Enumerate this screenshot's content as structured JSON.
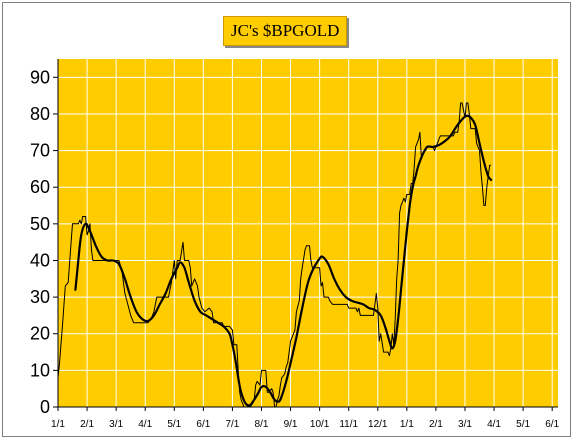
{
  "chart_data": {
    "type": "line",
    "title": "JC's $BPGOLD",
    "xlabel": "",
    "ylabel": "",
    "x_ticks": [
      "1/1",
      "2/1",
      "3/1",
      "4/1",
      "5/1",
      "6/1",
      "7/1",
      "8/1",
      "9/1",
      "10/1",
      "11/1",
      "12/1",
      "1/1",
      "2/1",
      "3/1",
      "4/1",
      "5/1",
      "6/1"
    ],
    "y_ticks": [
      0,
      10,
      20,
      30,
      40,
      50,
      60,
      70,
      80,
      90
    ],
    "ylim": [
      0,
      95
    ],
    "xlim": [
      0,
      17.2
    ],
    "grid": true,
    "legend": "none",
    "colors": {
      "background": "#ffcc00",
      "grid": "#ffffff",
      "series": "#000000"
    },
    "series": [
      {
        "style": "step",
        "points": [
          [
            0,
            8
          ],
          [
            0.05,
            12
          ],
          [
            0.15,
            22
          ],
          [
            0.25,
            33
          ],
          [
            0.35,
            34
          ],
          [
            0.45,
            45
          ],
          [
            0.5,
            50
          ],
          [
            0.7,
            50
          ],
          [
            0.75,
            51
          ],
          [
            0.8,
            50
          ],
          [
            0.85,
            52
          ],
          [
            0.95,
            52
          ],
          [
            1.0,
            47
          ],
          [
            1.05,
            48
          ],
          [
            1.1,
            50
          ],
          [
            1.15,
            43
          ],
          [
            1.2,
            40
          ],
          [
            1.55,
            40
          ],
          [
            1.65,
            40
          ],
          [
            2.1,
            40
          ],
          [
            2.2,
            37
          ],
          [
            2.3,
            31
          ],
          [
            2.4,
            28
          ],
          [
            2.5,
            25
          ],
          [
            2.6,
            23
          ],
          [
            3.1,
            23
          ],
          [
            3.2,
            24
          ],
          [
            3.3,
            26
          ],
          [
            3.4,
            30
          ],
          [
            3.8,
            30
          ],
          [
            3.9,
            34
          ],
          [
            4.0,
            40
          ],
          [
            4.05,
            35
          ],
          [
            4.1,
            40
          ],
          [
            4.2,
            40
          ],
          [
            4.3,
            45
          ],
          [
            4.35,
            40
          ],
          [
            4.5,
            40
          ],
          [
            4.55,
            38
          ],
          [
            4.6,
            33
          ],
          [
            4.7,
            35
          ],
          [
            4.8,
            33
          ],
          [
            4.85,
            30
          ],
          [
            4.95,
            27
          ],
          [
            5.05,
            26
          ],
          [
            5.2,
            27
          ],
          [
            5.3,
            26
          ],
          [
            5.35,
            23
          ],
          [
            5.65,
            23
          ],
          [
            5.7,
            22
          ],
          [
            5.9,
            22
          ],
          [
            6.0,
            21
          ],
          [
            6.05,
            17
          ],
          [
            6.15,
            17
          ],
          [
            6.2,
            10
          ],
          [
            6.25,
            4
          ],
          [
            6.3,
            2
          ],
          [
            6.4,
            0
          ],
          [
            6.5,
            0
          ],
          [
            6.6,
            0
          ],
          [
            6.7,
            1
          ],
          [
            6.75,
            2
          ],
          [
            6.8,
            6
          ],
          [
            6.85,
            7
          ],
          [
            6.95,
            6
          ],
          [
            7.0,
            10
          ],
          [
            7.05,
            10
          ],
          [
            7.15,
            10
          ],
          [
            7.2,
            4
          ],
          [
            7.25,
            4
          ],
          [
            7.35,
            5
          ],
          [
            7.4,
            4
          ],
          [
            7.45,
            0
          ],
          [
            7.5,
            0
          ],
          [
            7.55,
            2
          ],
          [
            7.6,
            3
          ],
          [
            7.65,
            6
          ],
          [
            7.7,
            8
          ],
          [
            7.8,
            9
          ],
          [
            7.85,
            11
          ],
          [
            7.9,
            12
          ],
          [
            8.0,
            18
          ],
          [
            8.1,
            20
          ],
          [
            8.15,
            21
          ],
          [
            8.2,
            26
          ],
          [
            8.3,
            29
          ],
          [
            8.35,
            35
          ],
          [
            8.4,
            38
          ],
          [
            8.5,
            43
          ],
          [
            8.55,
            44
          ],
          [
            8.65,
            44
          ],
          [
            8.7,
            40
          ],
          [
            8.75,
            38
          ],
          [
            9.0,
            38
          ],
          [
            9.05,
            33
          ],
          [
            9.1,
            34
          ],
          [
            9.15,
            30
          ],
          [
            9.3,
            30
          ],
          [
            9.35,
            29
          ],
          [
            9.45,
            28
          ],
          [
            9.95,
            28
          ],
          [
            10.0,
            27
          ],
          [
            10.25,
            27
          ],
          [
            10.3,
            26
          ],
          [
            10.35,
            27
          ],
          [
            10.4,
            25
          ],
          [
            10.85,
            25
          ],
          [
            10.9,
            28
          ],
          [
            10.95,
            31
          ],
          [
            11.0,
            27
          ],
          [
            11.05,
            18
          ],
          [
            11.1,
            20
          ],
          [
            11.2,
            15
          ],
          [
            11.35,
            15
          ],
          [
            11.4,
            14
          ],
          [
            11.45,
            16
          ],
          [
            11.5,
            20
          ],
          [
            11.55,
            17
          ],
          [
            11.6,
            24
          ],
          [
            11.65,
            35
          ],
          [
            11.7,
            40
          ],
          [
            11.75,
            53
          ],
          [
            11.8,
            55
          ],
          [
            11.85,
            56
          ],
          [
            11.9,
            57
          ],
          [
            11.95,
            56
          ],
          [
            12.0,
            58
          ],
          [
            12.1,
            58
          ],
          [
            12.15,
            61
          ],
          [
            12.2,
            61
          ],
          [
            12.25,
            65
          ],
          [
            12.3,
            71
          ],
          [
            12.4,
            73
          ],
          [
            12.45,
            75
          ],
          [
            12.5,
            68
          ],
          [
            12.6,
            70
          ],
          [
            12.65,
            70
          ],
          [
            12.7,
            71
          ],
          [
            12.9,
            71
          ],
          [
            12.95,
            70
          ],
          [
            13.0,
            71
          ],
          [
            13.05,
            72
          ],
          [
            13.1,
            73
          ],
          [
            13.15,
            74
          ],
          [
            13.6,
            74
          ],
          [
            13.65,
            75
          ],
          [
            13.75,
            75
          ],
          [
            13.8,
            78
          ],
          [
            13.85,
            83
          ],
          [
            13.9,
            83
          ],
          [
            14.0,
            79
          ],
          [
            14.05,
            83
          ],
          [
            14.1,
            83
          ],
          [
            14.15,
            80
          ],
          [
            14.2,
            76
          ],
          [
            14.35,
            76
          ],
          [
            14.4,
            72
          ],
          [
            14.5,
            70
          ],
          [
            14.55,
            64
          ],
          [
            14.6,
            60
          ],
          [
            14.65,
            55
          ],
          [
            14.7,
            55
          ],
          [
            14.75,
            60
          ],
          [
            14.8,
            63
          ],
          [
            14.85,
            66
          ],
          [
            14.9,
            66
          ]
        ]
      },
      {
        "style": "smooth",
        "points": [
          [
            0.6,
            32
          ],
          [
            0.7,
            40
          ],
          [
            0.8,
            47
          ],
          [
            0.95,
            50
          ],
          [
            1.1,
            48
          ],
          [
            1.3,
            44
          ],
          [
            1.5,
            41
          ],
          [
            1.7,
            40
          ],
          [
            1.9,
            40
          ],
          [
            2.1,
            39
          ],
          [
            2.3,
            35
          ],
          [
            2.5,
            30
          ],
          [
            2.7,
            26
          ],
          [
            2.9,
            24
          ],
          [
            3.1,
            23.5
          ],
          [
            3.3,
            25
          ],
          [
            3.5,
            28
          ],
          [
            3.7,
            31
          ],
          [
            3.9,
            35
          ],
          [
            4.1,
            38
          ],
          [
            4.2,
            39.5
          ],
          [
            4.35,
            38
          ],
          [
            4.5,
            34
          ],
          [
            4.7,
            29
          ],
          [
            4.9,
            26
          ],
          [
            5.1,
            25
          ],
          [
            5.3,
            24
          ],
          [
            5.5,
            23
          ],
          [
            5.7,
            22
          ],
          [
            5.9,
            20
          ],
          [
            6.0,
            17
          ],
          [
            6.1,
            13
          ],
          [
            6.2,
            8
          ],
          [
            6.3,
            4
          ],
          [
            6.45,
            1
          ],
          [
            6.6,
            0.5
          ],
          [
            6.75,
            2
          ],
          [
            6.9,
            4
          ],
          [
            7.0,
            5.5
          ],
          [
            7.15,
            5.5
          ],
          [
            7.3,
            4
          ],
          [
            7.45,
            2
          ],
          [
            7.6,
            1.5
          ],
          [
            7.7,
            3
          ],
          [
            7.85,
            7
          ],
          [
            8.0,
            12
          ],
          [
            8.2,
            19
          ],
          [
            8.4,
            27
          ],
          [
            8.6,
            34
          ],
          [
            8.8,
            38
          ],
          [
            9.0,
            40.5
          ],
          [
            9.1,
            41
          ],
          [
            9.3,
            39
          ],
          [
            9.5,
            35
          ],
          [
            9.7,
            32
          ],
          [
            9.9,
            30
          ],
          [
            10.1,
            29
          ],
          [
            10.3,
            28.5
          ],
          [
            10.5,
            28
          ],
          [
            10.7,
            27
          ],
          [
            10.9,
            26.5
          ],
          [
            11.1,
            25
          ],
          [
            11.25,
            22
          ],
          [
            11.4,
            18
          ],
          [
            11.5,
            16
          ],
          [
            11.6,
            18
          ],
          [
            11.7,
            24
          ],
          [
            11.8,
            32
          ],
          [
            11.9,
            40
          ],
          [
            12.0,
            48
          ],
          [
            12.1,
            55
          ],
          [
            12.2,
            60
          ],
          [
            12.3,
            63
          ],
          [
            12.4,
            66
          ],
          [
            12.55,
            69
          ],
          [
            12.7,
            71
          ],
          [
            12.9,
            71
          ],
          [
            13.1,
            71.5
          ],
          [
            13.3,
            72.5
          ],
          [
            13.5,
            74
          ],
          [
            13.7,
            76.5
          ],
          [
            13.9,
            78.5
          ],
          [
            14.05,
            79.5
          ],
          [
            14.2,
            79
          ],
          [
            14.35,
            77
          ],
          [
            14.5,
            72
          ],
          [
            14.65,
            67
          ],
          [
            14.8,
            63
          ],
          [
            14.9,
            62
          ]
        ]
      }
    ]
  }
}
